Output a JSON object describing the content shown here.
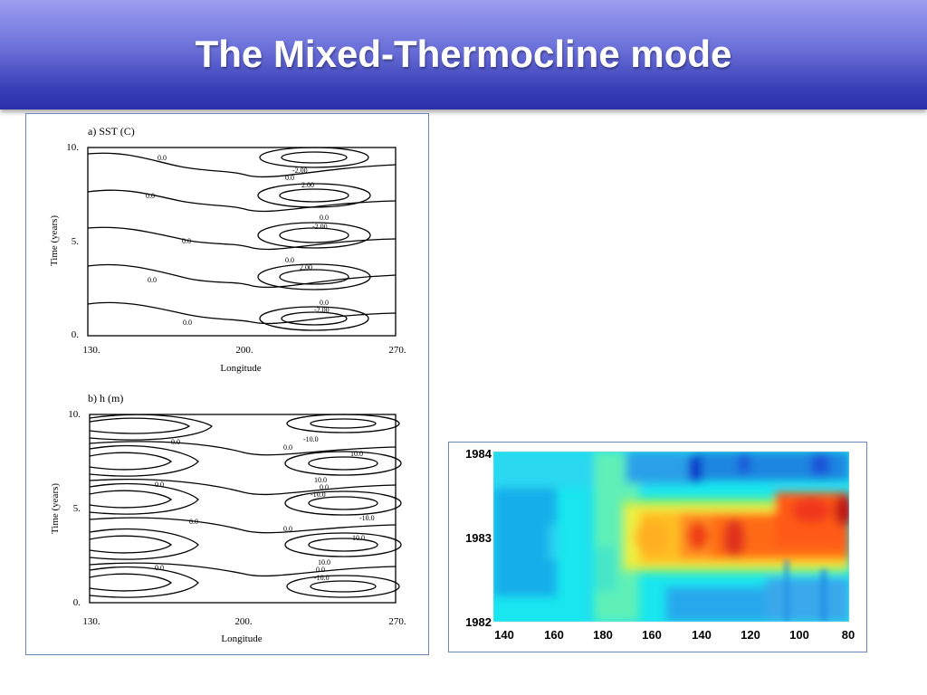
{
  "slide": {
    "title": "The Mixed-Thermocline mode"
  },
  "plot_a": {
    "panel_label": "a)  SST (C)",
    "ylabel": "Time (years)",
    "xlabel": "Longitude",
    "y_ticks": [
      "10.",
      "5.",
      "0."
    ],
    "x_ticks": [
      "130.",
      "200.",
      "270."
    ],
    "contour_labels": [
      "0.0",
      "0.0",
      "0.0",
      "0.0",
      "0.0",
      "-2.00",
      "0.0",
      "2.00",
      "0.0",
      "-2.00",
      "0.0",
      "2.00",
      "0.0",
      "-2.00"
    ]
  },
  "plot_b": {
    "panel_label": "b)  h (m)",
    "ylabel": "Time (years)",
    "xlabel": "Longitude",
    "y_ticks": [
      "10.",
      "5.",
      "0."
    ],
    "x_ticks": [
      "130.",
      "200.",
      "270."
    ],
    "contour_labels": [
      "0.0",
      "-10.0",
      "0.0",
      "10.0",
      "0.0",
      "10.0",
      "0.0",
      "-10.0",
      "0.0",
      "-10.0",
      "0.0",
      "10.0",
      "0.0",
      "10.0",
      "0.0",
      "-10.0"
    ]
  },
  "observed": {
    "y_ticks": [
      "1984",
      "1983",
      "1982"
    ],
    "x_ticks": [
      "140",
      "160",
      "180",
      "160",
      "140",
      "120",
      "100",
      "80"
    ]
  }
}
